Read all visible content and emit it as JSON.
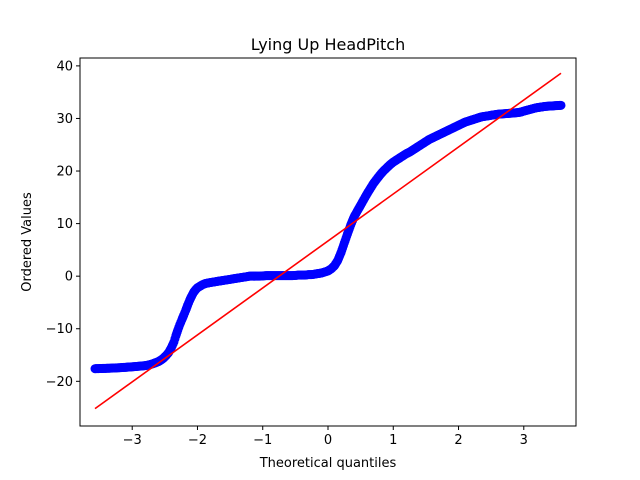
{
  "chart_data": {
    "type": "scatter",
    "title": "Lying Up HeadPitch",
    "xlabel": "Theoretical quantiles",
    "ylabel": "Ordered Values",
    "xlim": [
      -3.8,
      3.8
    ],
    "ylim": [
      -28.5,
      41.5
    ],
    "xticks": [
      -3,
      -2,
      -1,
      0,
      1,
      2,
      3
    ],
    "xtick_labels": [
      "−3",
      "−2",
      "−1",
      "0",
      "1",
      "2",
      "3"
    ],
    "yticks": [
      -20,
      -10,
      0,
      10,
      20,
      30,
      40
    ],
    "ytick_labels": [
      "−20",
      "−10",
      "0",
      "10",
      "20",
      "30",
      "40"
    ],
    "grid": false,
    "series": [
      {
        "kind": "points",
        "color": "#0000ff",
        "x": [
          -3.57,
          -3.33,
          -3.18,
          -3.06,
          -2.96,
          -2.87,
          -2.79,
          -2.72,
          -2.65,
          -2.59,
          -2.53,
          -2.48,
          -2.44,
          -2.4,
          -2.36,
          -2.33,
          -2.3,
          -2.27,
          -2.24,
          -2.21,
          -2.18,
          -2.15,
          -2.12,
          -2.09,
          -2.06,
          -2.03,
          -2.0,
          -1.96,
          -1.92,
          -1.88,
          -1.84,
          -1.8,
          -1.75,
          -1.7,
          -1.65,
          -1.6,
          -1.55,
          -1.5,
          -1.45,
          -1.4,
          -1.35,
          -1.3,
          -1.25,
          -1.2,
          -1.15,
          -1.1,
          -1.05,
          -1.0,
          -0.95,
          -0.9,
          -0.85,
          -0.8,
          -0.75,
          -0.7,
          -0.65,
          -0.6,
          -0.55,
          -0.5,
          -0.45,
          -0.4,
          -0.35,
          -0.3,
          -0.25,
          -0.2,
          -0.15,
          -0.1,
          -0.05,
          0.0,
          0.05,
          0.1,
          0.15,
          0.2,
          0.25,
          0.3,
          0.35,
          0.4,
          0.45,
          0.5,
          0.55,
          0.6,
          0.65,
          0.7,
          0.75,
          0.8,
          0.85,
          0.9,
          0.95,
          1.0,
          1.05,
          1.1,
          1.15,
          1.2,
          1.25,
          1.3,
          1.35,
          1.4,
          1.45,
          1.5,
          1.55,
          1.6,
          1.65,
          1.7,
          1.75,
          1.8,
          1.85,
          1.9,
          1.95,
          2.0,
          2.05,
          2.1,
          2.15,
          2.2,
          2.25,
          2.3,
          2.35,
          2.4,
          2.45,
          2.5,
          2.55,
          2.6,
          2.65,
          2.7,
          2.75,
          2.8,
          2.85,
          2.9,
          2.95,
          3.0,
          3.06,
          3.12,
          3.18,
          3.33,
          3.57
        ],
        "y": [
          -17.6,
          -17.5,
          -17.4,
          -17.3,
          -17.2,
          -17.1,
          -17.0,
          -16.8,
          -16.5,
          -16.2,
          -15.7,
          -15.1,
          -14.5,
          -13.6,
          -12.5,
          -11.3,
          -10.2,
          -9.2,
          -8.3,
          -7.4,
          -6.5,
          -5.5,
          -4.6,
          -3.8,
          -3.1,
          -2.6,
          -2.2,
          -1.9,
          -1.6,
          -1.4,
          -1.3,
          -1.2,
          -1.1,
          -1.0,
          -0.9,
          -0.8,
          -0.7,
          -0.6,
          -0.5,
          -0.4,
          -0.3,
          -0.2,
          -0.1,
          0.0,
          0.0,
          0.0,
          0.0,
          0.05,
          0.1,
          0.1,
          0.1,
          0.1,
          0.1,
          0.1,
          0.1,
          0.1,
          0.1,
          0.15,
          0.2,
          0.2,
          0.2,
          0.3,
          0.3,
          0.4,
          0.5,
          0.6,
          0.8,
          1.0,
          1.4,
          2.0,
          3.0,
          4.5,
          6.3,
          8.1,
          9.8,
          11.3,
          12.4,
          13.5,
          14.6,
          15.7,
          16.7,
          17.7,
          18.5,
          19.3,
          20.0,
          20.6,
          21.2,
          21.7,
          22.1,
          22.5,
          22.9,
          23.3,
          23.6,
          24.0,
          24.4,
          24.8,
          25.2,
          25.6,
          26.0,
          26.3,
          26.6,
          26.9,
          27.2,
          27.5,
          27.8,
          28.1,
          28.4,
          28.7,
          29.0,
          29.3,
          29.5,
          29.7,
          29.9,
          30.1,
          30.3,
          30.4,
          30.5,
          30.6,
          30.7,
          30.8,
          30.85,
          30.9,
          30.95,
          31.0,
          31.05,
          31.1,
          31.2,
          31.4,
          31.6,
          31.8,
          32.0,
          32.3,
          32.5
        ]
      },
      {
        "kind": "line",
        "color": "#ff0000",
        "x": [
          -3.57,
          3.57
        ],
        "y": [
          -25.2,
          38.6
        ]
      }
    ]
  }
}
